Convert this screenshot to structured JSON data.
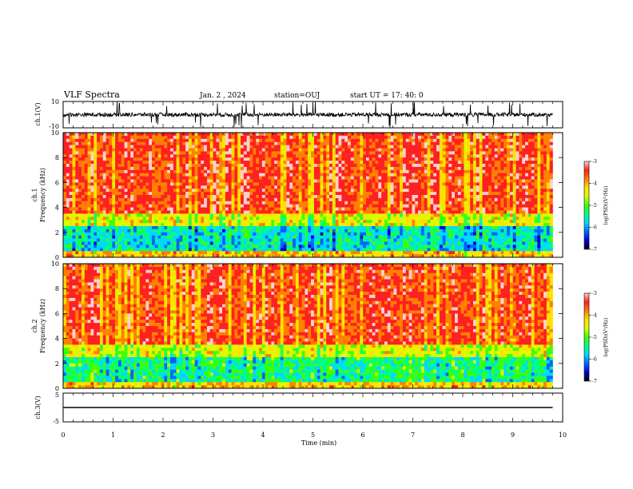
{
  "header": {
    "title": "VLF Spectra",
    "date": "Jan. 2 , 2024",
    "station": "station=OUJ",
    "start": "start UT = 17: 40: 0"
  },
  "chart_data": [
    {
      "type": "line",
      "ylabel": "ch.1(V)",
      "xlim": [
        0,
        10
      ],
      "ylim": [
        -10,
        10
      ],
      "y_ticks": [
        "10",
        "-10"
      ],
      "y_tick_values": [
        10,
        -10
      ],
      "baseline": 0,
      "fluctuation": 3
    },
    {
      "type": "heatmap",
      "ylabel_lines": [
        "ch.1",
        "Frequency (kHz)"
      ],
      "xlim": [
        0,
        10
      ],
      "ylim": [
        0,
        10
      ],
      "y_ticks": [
        0,
        2,
        4,
        6,
        8,
        10
      ],
      "data_end_min": 9.8,
      "colorbar": {
        "label": "log(PSD)(V²/Hz)",
        "range": [
          -7,
          -3
        ],
        "ticks": [
          "-3",
          "-4",
          "-5",
          "-6",
          "-7"
        ],
        "tick_values": [
          -3,
          -4,
          -5,
          -6,
          -7
        ]
      }
    },
    {
      "type": "heatmap",
      "ylabel_lines": [
        "ch.2",
        "Frequency (kHz)"
      ],
      "xlim": [
        0,
        10
      ],
      "ylim": [
        0,
        10
      ],
      "y_ticks": [
        0,
        2,
        4,
        6,
        8,
        10
      ],
      "data_end_min": 9.8,
      "colorbar": {
        "label": "log(PSD)(V²/Hz)",
        "range": [
          -7,
          -3
        ],
        "ticks": [
          "-3",
          "-4",
          "-5",
          "-6",
          "-7"
        ],
        "tick_values": [
          -3,
          -4,
          -5,
          -6,
          -7
        ]
      }
    },
    {
      "type": "line",
      "ylabel": "ch.3(V)",
      "xlim": [
        0,
        10
      ],
      "ylim": [
        -5,
        5
      ],
      "y_ticks": [
        "5",
        "-5"
      ],
      "y_tick_values": [
        5,
        -5
      ],
      "baseline": 0
    }
  ],
  "xaxis": {
    "label": "Time (min)",
    "ticks": [
      "0",
      "1",
      "2",
      "3",
      "4",
      "5",
      "6",
      "7",
      "8",
      "9",
      "10"
    ]
  },
  "colormap": [
    "#000000",
    "#0000d8",
    "#0064ff",
    "#00d8ff",
    "#00ff80",
    "#40ff00",
    "#d8ff00",
    "#ffe000",
    "#ff8000",
    "#ff2020",
    "#ffd0d0"
  ]
}
